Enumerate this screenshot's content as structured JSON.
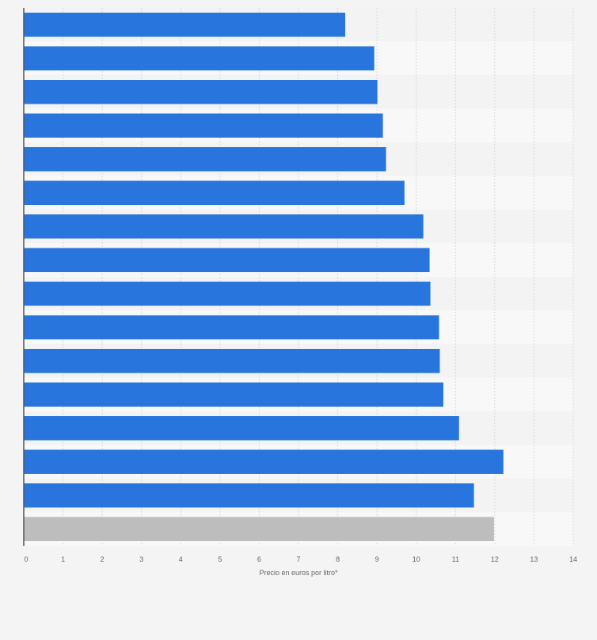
{
  "chart_data": {
    "type": "bar",
    "orientation": "horizontal",
    "title": "",
    "xlabel": "Precio en euros por litro*",
    "ylabel": "",
    "xlim": [
      0,
      14
    ],
    "xticks": [
      "0",
      "1",
      "2",
      "3",
      "4",
      "5",
      "6",
      "7",
      "8",
      "9",
      "10",
      "11",
      "12",
      "13",
      "14"
    ],
    "grid": true,
    "values": [
      8.19,
      8.93,
      9.01,
      9.15,
      9.23,
      9.7,
      10.18,
      10.34,
      10.36,
      10.58,
      10.6,
      10.69,
      11.09,
      12.22,
      11.47,
      11.98
    ],
    "highlight_index": 15,
    "colors": {
      "bar": "#2876dd",
      "highlight": "#bdbdbd",
      "axis": "#555555",
      "grid": "#d8d8d8"
    }
  }
}
